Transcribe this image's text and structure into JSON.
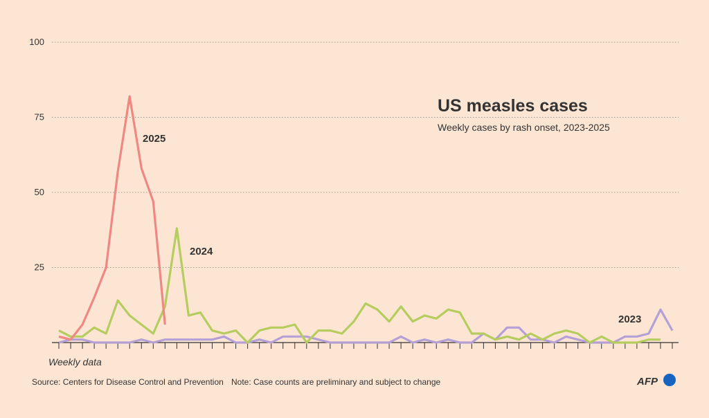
{
  "chart_data": {
    "type": "line",
    "title": "US measles cases",
    "subtitle": "Weekly cases by rash onset, 2023-2025",
    "x_note": "Weekly data",
    "source": "Source: Centers for Disease Control and Prevention",
    "note": "Note: Case counts are preliminary and subject to change",
    "logo": "AFP",
    "categories": [
      null,
      null,
      null,
      null,
      null,
      null,
      null,
      null,
      null,
      null,
      null,
      null,
      null,
      null,
      null,
      null,
      null,
      null,
      null,
      null,
      null,
      null,
      null,
      null,
      null,
      null,
      null,
      null,
      null,
      null,
      null,
      null,
      null,
      null,
      null,
      null,
      null,
      null,
      null,
      null,
      null,
      null,
      null,
      null,
      null,
      null,
      null,
      null,
      null,
      null,
      null,
      null,
      null
    ],
    "series": [
      {
        "name": "2023",
        "color": "#b49fd6",
        "values": [
          0,
          1,
          1,
          0,
          0,
          0,
          0,
          1,
          0,
          1,
          1,
          1,
          1,
          1,
          2,
          0,
          0,
          1,
          0,
          2,
          2,
          2,
          1,
          0,
          0,
          0,
          0,
          0,
          0,
          2,
          0,
          1,
          0,
          1,
          0,
          0,
          3,
          1,
          5,
          5,
          1,
          1,
          0,
          2,
          1,
          0,
          0,
          0,
          2,
          2,
          3,
          11,
          4
        ]
      },
      {
        "name": "2024",
        "color": "#b5cc5e",
        "values": [
          4,
          2,
          2,
          5,
          3,
          14,
          9,
          6,
          3,
          12,
          38,
          9,
          10,
          4,
          3,
          4,
          0,
          4,
          5,
          5,
          6,
          0,
          4,
          4,
          3,
          7,
          13,
          11,
          7,
          12,
          7,
          9,
          8,
          11,
          10,
          3,
          3,
          1,
          2,
          1,
          3,
          1,
          3,
          4,
          3,
          0,
          2,
          0,
          0,
          0,
          1,
          1,
          null
        ]
      },
      {
        "name": "2025",
        "color": "#ef8882",
        "values": [
          2,
          1,
          6,
          15,
          25,
          57,
          82,
          58,
          47,
          6,
          null,
          null,
          null,
          null,
          null,
          null,
          null,
          null,
          null,
          null,
          null,
          null,
          null,
          null,
          null,
          null,
          null,
          null,
          null,
          null,
          null,
          null,
          null,
          null,
          null,
          null,
          null,
          null,
          null,
          null,
          null,
          null,
          null,
          null,
          null,
          null,
          null,
          null,
          null,
          null,
          null,
          null,
          null
        ]
      }
    ],
    "ylim": [
      0,
      100
    ],
    "yticks": [
      0,
      25,
      50,
      75,
      100
    ],
    "grid": true
  }
}
